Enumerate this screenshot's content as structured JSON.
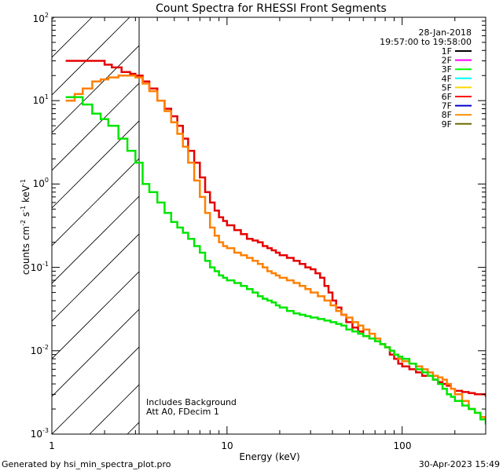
{
  "chart_data": {
    "type": "line",
    "title": "Count Spectra for RHESSI Front Segments",
    "xlabel": "Energy (keV)",
    "ylabel_parts": {
      "main": "counts cm",
      "exp1": "-2",
      "s": " s",
      "exp2": "-1",
      "kev": " keV",
      "exp3": "-1"
    },
    "x_scale": "log",
    "y_scale": "log",
    "xlim": [
      1,
      300
    ],
    "ylim": [
      0.001,
      100
    ],
    "x_tick_labels": [
      "1",
      "10",
      "100"
    ],
    "y_tick_labels": [
      {
        "base": "10",
        "exp": "-3"
      },
      {
        "base": "10",
        "exp": "-2"
      },
      {
        "base": "10",
        "exp": "-1"
      },
      {
        "base": "10",
        "exp": "0"
      },
      {
        "base": "10",
        "exp": "1"
      },
      {
        "base": "10",
        "exp": "2"
      }
    ],
    "hatch_region": {
      "x_min": 1,
      "x_max": 3
    },
    "annotations": {
      "line1": "Includes Background",
      "line2": "Att A0, FDecim 1"
    },
    "date": "28-Jan-2018",
    "time_range": "19:57:00 to 19:58:00",
    "legend": [
      {
        "name": "1F",
        "color": "#000000"
      },
      {
        "name": "2F",
        "color": "#ff00ff"
      },
      {
        "name": "3F",
        "color": "#00ff00"
      },
      {
        "name": "4F",
        "color": "#00ffff"
      },
      {
        "name": "5F",
        "color": "#ffd700"
      },
      {
        "name": "6F",
        "color": "#ff0000"
      },
      {
        "name": "7F",
        "color": "#0000cd"
      },
      {
        "name": "8F",
        "color": "#ff8c00"
      },
      {
        "name": "9F",
        "color": "#6b6b00"
      }
    ],
    "series": [
      {
        "name": "6F",
        "color": "#e60000",
        "points": [
          [
            1.2,
            30
          ],
          [
            1.4,
            30
          ],
          [
            1.6,
            30
          ],
          [
            1.8,
            30
          ],
          [
            2.0,
            27
          ],
          [
            2.2,
            25
          ],
          [
            2.5,
            22
          ],
          [
            2.8,
            21
          ],
          [
            3.0,
            20
          ],
          [
            3.3,
            17
          ],
          [
            3.6,
            14
          ],
          [
            4.0,
            10
          ],
          [
            4.4,
            8
          ],
          [
            4.8,
            6.5
          ],
          [
            5.2,
            5
          ],
          [
            5.6,
            3.5
          ],
          [
            6.0,
            2.5
          ],
          [
            6.5,
            1.8
          ],
          [
            7.0,
            1.2
          ],
          [
            7.5,
            0.8
          ],
          [
            8.0,
            0.6
          ],
          [
            8.5,
            0.48
          ],
          [
            9,
            0.4
          ],
          [
            9.5,
            0.36
          ],
          [
            10,
            0.32
          ],
          [
            11,
            0.28
          ],
          [
            12,
            0.25
          ],
          [
            13,
            0.22
          ],
          [
            14,
            0.21
          ],
          [
            15,
            0.2
          ],
          [
            16,
            0.18
          ],
          [
            17,
            0.17
          ],
          [
            18,
            0.16
          ],
          [
            19,
            0.15
          ],
          [
            20,
            0.14
          ],
          [
            22,
            0.13
          ],
          [
            24,
            0.12
          ],
          [
            26,
            0.11
          ],
          [
            28,
            0.1
          ],
          [
            30,
            0.095
          ],
          [
            32,
            0.085
          ],
          [
            34,
            0.075
          ],
          [
            36,
            0.06
          ],
          [
            38,
            0.05
          ],
          [
            40,
            0.04
          ],
          [
            42,
            0.033
          ],
          [
            45,
            0.027
          ],
          [
            48,
            0.022
          ],
          [
            52,
            0.019
          ],
          [
            56,
            0.017
          ],
          [
            60,
            0.015
          ],
          [
            65,
            0.014
          ],
          [
            70,
            0.013
          ],
          [
            75,
            0.012
          ],
          [
            80,
            0.011
          ],
          [
            85,
            0.009
          ],
          [
            90,
            0.008
          ],
          [
            95,
            0.007
          ],
          [
            100,
            0.0065
          ],
          [
            110,
            0.006
          ],
          [
            120,
            0.0055
          ],
          [
            130,
            0.005
          ],
          [
            140,
            0.005
          ],
          [
            150,
            0.0045
          ],
          [
            160,
            0.0042
          ],
          [
            170,
            0.004
          ],
          [
            180,
            0.0038
          ],
          [
            190,
            0.0035
          ],
          [
            200,
            0.0033
          ],
          [
            220,
            0.0032
          ],
          [
            240,
            0.0031
          ],
          [
            260,
            0.003
          ],
          [
            280,
            0.003
          ],
          [
            300,
            0.0028
          ]
        ]
      },
      {
        "name": "8F",
        "color": "#ff8000",
        "points": [
          [
            1.2,
            10
          ],
          [
            1.35,
            12
          ],
          [
            1.5,
            14
          ],
          [
            1.7,
            17
          ],
          [
            1.9,
            18
          ],
          [
            2.1,
            19
          ],
          [
            2.4,
            20
          ],
          [
            2.7,
            20
          ],
          [
            3.0,
            19
          ],
          [
            3.3,
            16
          ],
          [
            3.6,
            13
          ],
          [
            4.0,
            10
          ],
          [
            4.4,
            7.5
          ],
          [
            4.8,
            5.5
          ],
          [
            5.2,
            4
          ],
          [
            5.6,
            2.8
          ],
          [
            6.0,
            1.8
          ],
          [
            6.5,
            1.1
          ],
          [
            7.0,
            0.7
          ],
          [
            7.5,
            0.45
          ],
          [
            8.0,
            0.3
          ],
          [
            8.5,
            0.24
          ],
          [
            9,
            0.2
          ],
          [
            9.5,
            0.18
          ],
          [
            10,
            0.17
          ],
          [
            11,
            0.15
          ],
          [
            12,
            0.14
          ],
          [
            13,
            0.13
          ],
          [
            14,
            0.12
          ],
          [
            15,
            0.11
          ],
          [
            16,
            0.1
          ],
          [
            17,
            0.09
          ],
          [
            18,
            0.085
          ],
          [
            19,
            0.08
          ],
          [
            20,
            0.075
          ],
          [
            22,
            0.07
          ],
          [
            24,
            0.065
          ],
          [
            26,
            0.06
          ],
          [
            28,
            0.055
          ],
          [
            30,
            0.05
          ],
          [
            33,
            0.045
          ],
          [
            36,
            0.04
          ],
          [
            39,
            0.035
          ],
          [
            42,
            0.03
          ],
          [
            45,
            0.027
          ],
          [
            48,
            0.025
          ],
          [
            52,
            0.022
          ],
          [
            56,
            0.02
          ],
          [
            60,
            0.018
          ],
          [
            65,
            0.016
          ],
          [
            70,
            0.014
          ],
          [
            75,
            0.012
          ],
          [
            80,
            0.011
          ],
          [
            85,
            0.01
          ],
          [
            90,
            0.009
          ],
          [
            95,
            0.008
          ],
          [
            100,
            0.0075
          ],
          [
            110,
            0.007
          ],
          [
            120,
            0.0065
          ],
          [
            130,
            0.006
          ],
          [
            140,
            0.0055
          ],
          [
            150,
            0.005
          ],
          [
            160,
            0.0048
          ],
          [
            170,
            0.0045
          ],
          [
            180,
            0.004
          ],
          [
            190,
            0.0035
          ],
          [
            200,
            0.003
          ],
          [
            220,
            0.0025
          ],
          [
            240,
            0.002
          ],
          [
            260,
            0.0018
          ],
          [
            280,
            0.0016
          ],
          [
            300,
            0.0015
          ]
        ]
      },
      {
        "name": "3F",
        "color": "#00e600",
        "points": [
          [
            1.2,
            11
          ],
          [
            1.35,
            11
          ],
          [
            1.5,
            9
          ],
          [
            1.7,
            7
          ],
          [
            1.9,
            6
          ],
          [
            2.1,
            5
          ],
          [
            2.4,
            3.5
          ],
          [
            2.7,
            2.5
          ],
          [
            3.0,
            1.8
          ],
          [
            3.3,
            1.0
          ],
          [
            3.6,
            0.8
          ],
          [
            4.0,
            0.6
          ],
          [
            4.4,
            0.45
          ],
          [
            4.8,
            0.35
          ],
          [
            5.2,
            0.3
          ],
          [
            5.6,
            0.26
          ],
          [
            6.0,
            0.22
          ],
          [
            6.5,
            0.18
          ],
          [
            7.0,
            0.15
          ],
          [
            7.5,
            0.12
          ],
          [
            8.0,
            0.1
          ],
          [
            8.5,
            0.09
          ],
          [
            9,
            0.08
          ],
          [
            9.5,
            0.075
          ],
          [
            10,
            0.07
          ],
          [
            11,
            0.065
          ],
          [
            12,
            0.06
          ],
          [
            13,
            0.055
          ],
          [
            14,
            0.05
          ],
          [
            15,
            0.045
          ],
          [
            16,
            0.042
          ],
          [
            17,
            0.04
          ],
          [
            18,
            0.038
          ],
          [
            19,
            0.035
          ],
          [
            20,
            0.033
          ],
          [
            22,
            0.03
          ],
          [
            24,
            0.028
          ],
          [
            26,
            0.027
          ],
          [
            28,
            0.026
          ],
          [
            30,
            0.025
          ],
          [
            33,
            0.024
          ],
          [
            36,
            0.023
          ],
          [
            39,
            0.022
          ],
          [
            42,
            0.021
          ],
          [
            45,
            0.02
          ],
          [
            48,
            0.018
          ],
          [
            52,
            0.017
          ],
          [
            56,
            0.016
          ],
          [
            60,
            0.015
          ],
          [
            65,
            0.014
          ],
          [
            70,
            0.013
          ],
          [
            75,
            0.012
          ],
          [
            80,
            0.011
          ],
          [
            85,
            0.01
          ],
          [
            90,
            0.009
          ],
          [
            95,
            0.0085
          ],
          [
            100,
            0.008
          ],
          [
            110,
            0.007
          ],
          [
            120,
            0.006
          ],
          [
            130,
            0.0055
          ],
          [
            140,
            0.005
          ],
          [
            150,
            0.0045
          ],
          [
            160,
            0.004
          ],
          [
            170,
            0.0035
          ],
          [
            180,
            0.003
          ],
          [
            190,
            0.0028
          ],
          [
            200,
            0.0025
          ],
          [
            220,
            0.0022
          ],
          [
            240,
            0.002
          ],
          [
            260,
            0.0018
          ],
          [
            280,
            0.0015
          ],
          [
            300,
            0.0013
          ]
        ]
      }
    ]
  },
  "footer": {
    "left": "Generated by hsi_min_spectra_plot.pro",
    "right": "30-Apr-2023 15:49"
  }
}
